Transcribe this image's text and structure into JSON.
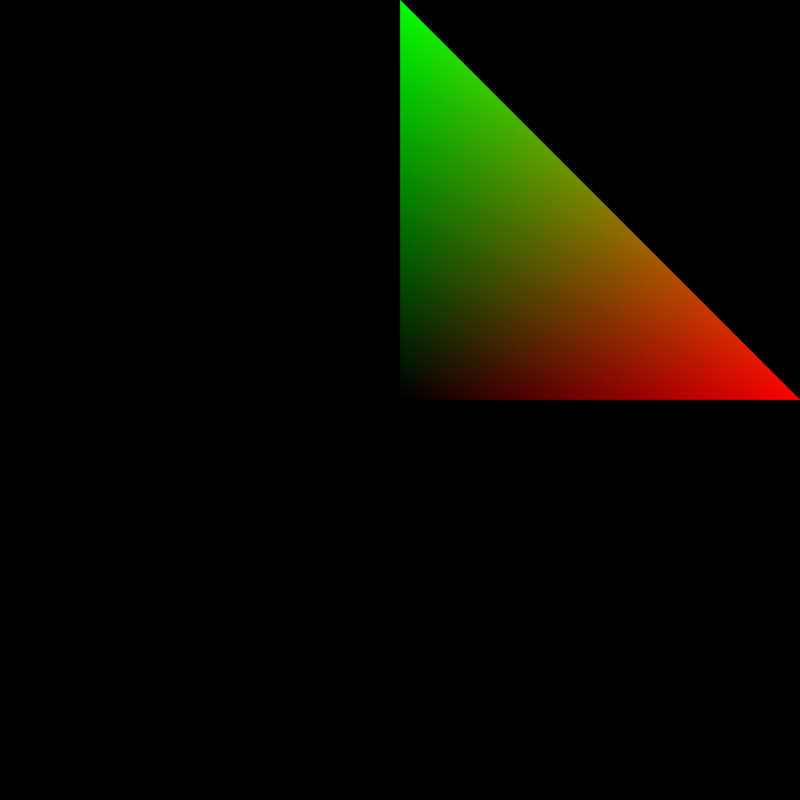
{
  "scene": {
    "background_color": "#000000",
    "triangle": {
      "vertex_colors": {
        "top": "#00ff00",
        "corner": "#000000",
        "right": "#ff0000"
      }
    }
  }
}
